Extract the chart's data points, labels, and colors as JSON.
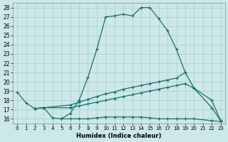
{
  "xlabel": "Humidex (Indice chaleur)",
  "ylabel": "",
  "background_color": "#cce8e8",
  "grid_color": "#b0d0d0",
  "line_color": "#1a6e6e",
  "xlim": [
    -0.5,
    23.5
  ],
  "ylim": [
    15.5,
    28.5
  ],
  "yticks": [
    16,
    17,
    18,
    19,
    20,
    21,
    22,
    23,
    24,
    25,
    26,
    27,
    28
  ],
  "xticks": [
    0,
    1,
    2,
    3,
    4,
    5,
    6,
    7,
    8,
    9,
    10,
    11,
    12,
    13,
    14,
    15,
    16,
    17,
    18,
    19,
    20,
    21,
    22,
    23
  ],
  "series": [
    {
      "x": [
        0,
        1,
        2,
        3,
        4,
        5,
        6,
        7,
        8,
        9,
        10,
        11,
        12,
        13,
        14,
        15,
        16,
        17,
        18,
        19
      ],
      "y": [
        18.9,
        17.7,
        17.1,
        17.2,
        16.1,
        16.0,
        16.6,
        18.0,
        20.5,
        23.5,
        27.0,
        27.1,
        27.3,
        27.1,
        28.0,
        28.0,
        26.8,
        25.5,
        23.5,
        21.0
      ]
    },
    {
      "x": [
        2,
        3,
        6,
        7,
        8,
        9,
        10,
        11,
        12,
        13,
        14,
        15,
        16,
        17,
        18,
        19,
        20,
        22,
        23
      ],
      "y": [
        17.1,
        17.2,
        17.5,
        17.8,
        18.1,
        18.4,
        18.7,
        18.9,
        19.2,
        19.4,
        19.6,
        19.8,
        20.0,
        20.2,
        20.4,
        21.0,
        19.3,
        17.2,
        15.8
      ]
    },
    {
      "x": [
        2,
        3,
        6,
        7,
        8,
        9,
        10,
        11,
        12,
        13,
        14,
        15,
        16,
        17,
        18,
        19,
        20,
        22,
        23
      ],
      "y": [
        17.1,
        17.2,
        17.2,
        17.4,
        17.6,
        17.8,
        18.0,
        18.2,
        18.4,
        18.6,
        18.8,
        19.0,
        19.2,
        19.4,
        19.6,
        19.8,
        19.3,
        18.0,
        15.8
      ]
    },
    {
      "x": [
        5,
        6,
        7,
        8,
        9,
        10,
        11,
        12,
        13,
        14,
        15,
        16,
        17,
        18,
        19,
        20,
        22,
        23
      ],
      "y": [
        16.0,
        16.0,
        16.0,
        16.0,
        16.1,
        16.2,
        16.2,
        16.2,
        16.2,
        16.2,
        16.1,
        16.0,
        16.0,
        16.0,
        16.0,
        16.0,
        15.8,
        15.7
      ]
    }
  ]
}
